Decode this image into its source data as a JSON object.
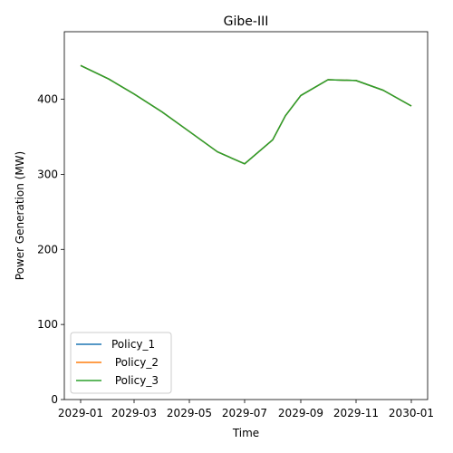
{
  "chart_data": {
    "type": "line",
    "title": "Gibe-III",
    "xlabel": "Time",
    "ylabel": "Power Generation (MW)",
    "x": [
      "2029-01-01",
      "2029-02-01",
      "2029-03-01",
      "2029-04-01",
      "2029-05-01",
      "2029-06-01",
      "2029-07-01",
      "2029-08-01",
      "2029-08-15",
      "2029-09-01",
      "2029-10-01",
      "2029-11-01",
      "2029-12-01",
      "2030-01-01"
    ],
    "xticks": [
      "2029-01",
      "2029-03",
      "2029-05",
      "2029-07",
      "2029-09",
      "2029-11",
      "2030-01"
    ],
    "yticks": [
      0,
      100,
      200,
      300,
      400
    ],
    "ylim": [
      0,
      490
    ],
    "grid": false,
    "legend_position": "bottom-left",
    "series": [
      {
        "name": "Policy_1",
        "color": "#1f77b4",
        "values": [
          445,
          427,
          407,
          383,
          357,
          330,
          314,
          346,
          378,
          405,
          426,
          425,
          412,
          391
        ]
      },
      {
        "name": " Policy_2",
        "color": "#ff7f0e",
        "values": [
          445,
          427,
          407,
          383,
          357,
          330,
          314,
          346,
          378,
          405,
          426,
          425,
          412,
          391
        ]
      },
      {
        "name": " Policy_3",
        "color": "#2ca02c",
        "values": [
          445,
          427,
          407,
          383,
          357,
          330,
          314,
          346,
          378,
          405,
          426,
          425,
          412,
          391
        ]
      }
    ]
  }
}
